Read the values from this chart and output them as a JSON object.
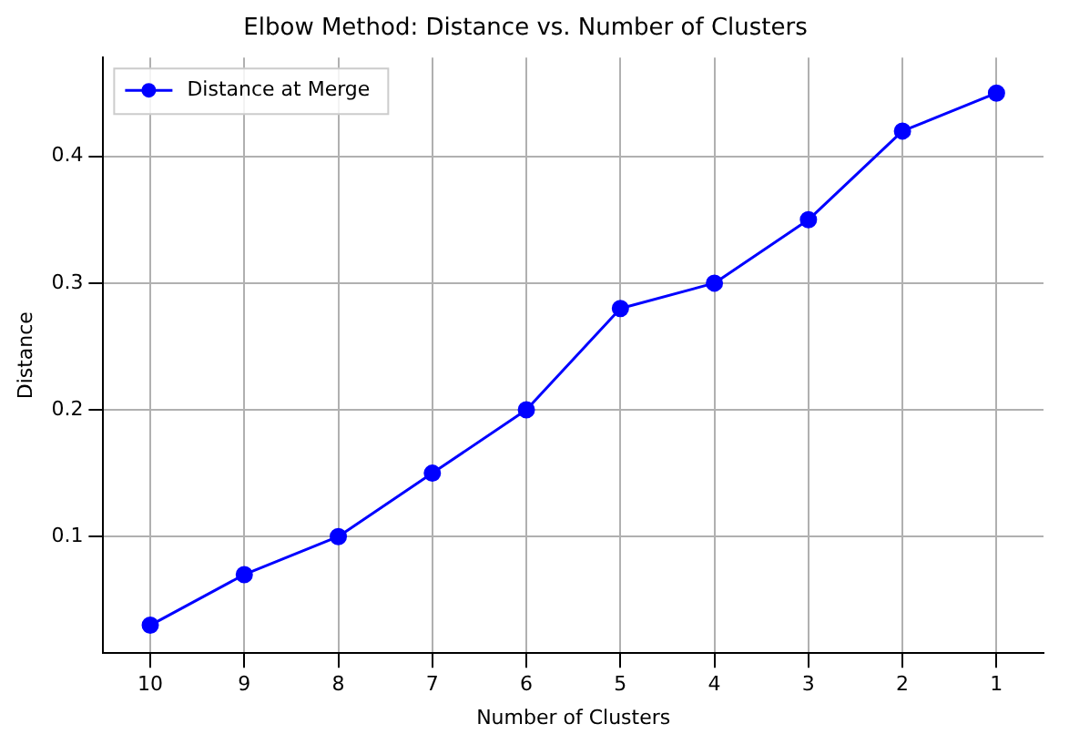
{
  "chart_data": {
    "type": "line",
    "title": "Elbow Method: Distance vs. Number of Clusters",
    "xlabel": "Number of Clusters",
    "ylabel": "Distance",
    "categories": [
      "10",
      "9",
      "8",
      "7",
      "6",
      "5",
      "4",
      "3",
      "2",
      "1"
    ],
    "series": [
      {
        "name": "Distance at Merge",
        "color": "#0000ff",
        "values": [
          0.03,
          0.07,
          0.1,
          0.15,
          0.2,
          0.28,
          0.3,
          0.35,
          0.42,
          0.45
        ]
      }
    ],
    "ylim": [
      0.008,
      0.478
    ],
    "yticks": [
      0.1,
      0.2,
      0.3,
      0.4
    ],
    "grid": true,
    "legend": "top left",
    "marker": "circle",
    "line_style": "solid"
  }
}
